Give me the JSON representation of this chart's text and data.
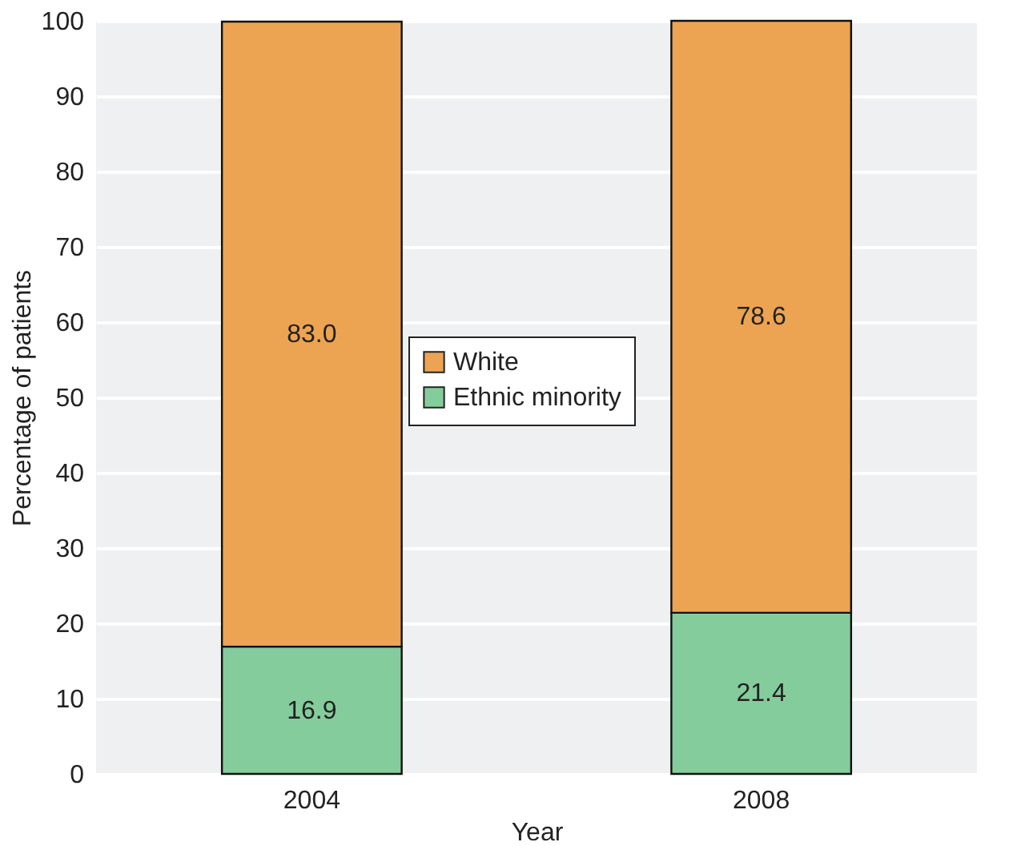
{
  "chart_data": {
    "type": "bar",
    "stacked": true,
    "xlabel": "Year",
    "ylabel": "Percentage of patients",
    "categories": [
      "2004",
      "2008"
    ],
    "series": [
      {
        "name": "Ethnic minority",
        "color": "#85cc9c",
        "values": [
          16.9,
          21.4
        ],
        "value_labels": [
          "16.9",
          "21.4"
        ]
      },
      {
        "name": "White",
        "color": "#eca452",
        "values": [
          83.0,
          78.6
        ],
        "value_labels": [
          "83.0",
          "78.6"
        ]
      }
    ],
    "ylim": [
      0,
      100
    ],
    "yticks": [
      0,
      10,
      20,
      30,
      40,
      50,
      60,
      70,
      80,
      90,
      100
    ],
    "grid": "y",
    "legend": "center"
  }
}
